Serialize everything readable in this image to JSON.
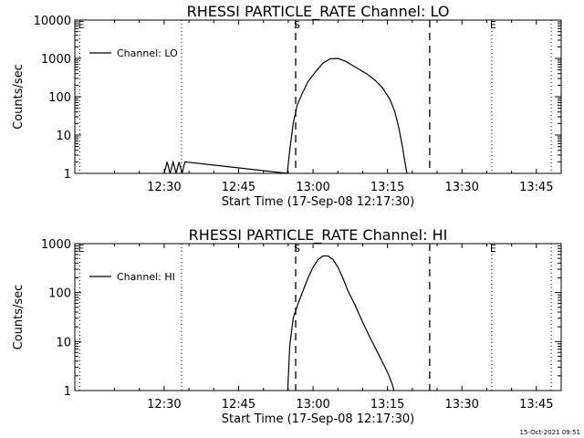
{
  "footer": {
    "timestamp": "15-Oct-2021 09:51"
  },
  "chart_data": [
    {
      "type": "line",
      "title": "RHESSI PARTICLE_RATE Channel: LO",
      "xlabel": "Start Time (17-Sep-08 12:17:30)",
      "ylabel": "Counts/sec",
      "yscale": "log",
      "xlim": [
        -18,
        80
      ],
      "ylim": [
        1,
        10000
      ],
      "x_ticks": [
        {
          "value": 0,
          "label": "12:30"
        },
        {
          "value": 15,
          "label": "12:45"
        },
        {
          "value": 30,
          "label": "13:00"
        },
        {
          "value": 45,
          "label": "13:15"
        },
        {
          "value": 60,
          "label": "13:30"
        },
        {
          "value": 75,
          "label": "13:45"
        }
      ],
      "y_ticks": [
        {
          "value": 1,
          "label": "1"
        },
        {
          "value": 10,
          "label": "10"
        },
        {
          "value": 100,
          "label": "100"
        },
        {
          "value": 1000,
          "label": "1000"
        },
        {
          "value": 10000,
          "label": "10000"
        }
      ],
      "legend": {
        "label": "Channel: LO",
        "position": "top-left"
      },
      "markers": {
        "dotted": [
          {
            "x": -17,
            "label": "E"
          },
          {
            "x": 3.5,
            "label": ""
          },
          {
            "x": 66,
            "label": "E"
          },
          {
            "x": 78,
            "label": ""
          }
        ],
        "dashed": [
          {
            "x": 26.5,
            "label": "S"
          },
          {
            "x": 53.5,
            "label": ""
          }
        ]
      },
      "series": [
        {
          "name": "Channel: LO",
          "x": [
            0,
            0.6,
            1.2,
            1.8,
            2.4,
            3.0,
            3.6,
            4.2,
            24.8,
            25.3,
            26.0,
            26.8,
            27.8,
            29.0,
            30.5,
            32.0,
            33.5,
            35.0,
            36.5,
            38.0,
            39.5,
            41.0,
            42.5,
            44.0,
            45.5,
            46.5,
            47.3,
            48.0,
            48.5,
            48.9
          ],
          "y": [
            1,
            2,
            1,
            2,
            1,
            2,
            1,
            2,
            1,
            4,
            20,
            60,
            120,
            250,
            450,
            750,
            980,
            1000,
            850,
            650,
            500,
            380,
            270,
            170,
            85,
            40,
            15,
            5,
            2,
            1
          ]
        }
      ]
    },
    {
      "type": "line",
      "title": "RHESSI PARTICLE_RATE Channel: HI",
      "xlabel": "Start Time (17-Sep-08 12:17:30)",
      "ylabel": "Counts/sec",
      "yscale": "log",
      "xlim": [
        -18,
        80
      ],
      "ylim": [
        1,
        1000
      ],
      "x_ticks": [
        {
          "value": 0,
          "label": "12:30"
        },
        {
          "value": 15,
          "label": "12:45"
        },
        {
          "value": 30,
          "label": "13:00"
        },
        {
          "value": 45,
          "label": "13:15"
        },
        {
          "value": 60,
          "label": "13:30"
        },
        {
          "value": 75,
          "label": "13:45"
        }
      ],
      "y_ticks": [
        {
          "value": 1,
          "label": "1"
        },
        {
          "value": 10,
          "label": "10"
        },
        {
          "value": 100,
          "label": "100"
        },
        {
          "value": 1000,
          "label": "1000"
        }
      ],
      "legend": {
        "label": "Channel: HI",
        "position": "top-left"
      },
      "markers": {
        "dotted": [
          {
            "x": -17,
            "label": "E"
          },
          {
            "x": 3.5,
            "label": ""
          },
          {
            "x": 66,
            "label": "E"
          },
          {
            "x": 78,
            "label": ""
          }
        ],
        "dashed": [
          {
            "x": 26.5,
            "label": "S"
          },
          {
            "x": 53.5,
            "label": ""
          }
        ]
      },
      "series": [
        {
          "name": "Channel: HI",
          "x": [
            24.9,
            25.3,
            26.0,
            27.0,
            28.0,
            29.0,
            30.0,
            31.0,
            32.0,
            33.0,
            34.0,
            35.0,
            36.0,
            37.0,
            38.5,
            40.0,
            41.5,
            43.0,
            44.5,
            45.3,
            46.0,
            46.3
          ],
          "y": [
            1,
            8,
            30,
            60,
            110,
            200,
            330,
            470,
            560,
            560,
            480,
            330,
            200,
            110,
            55,
            25,
            12,
            6,
            3,
            2,
            1.3,
            1
          ]
        }
      ]
    }
  ]
}
